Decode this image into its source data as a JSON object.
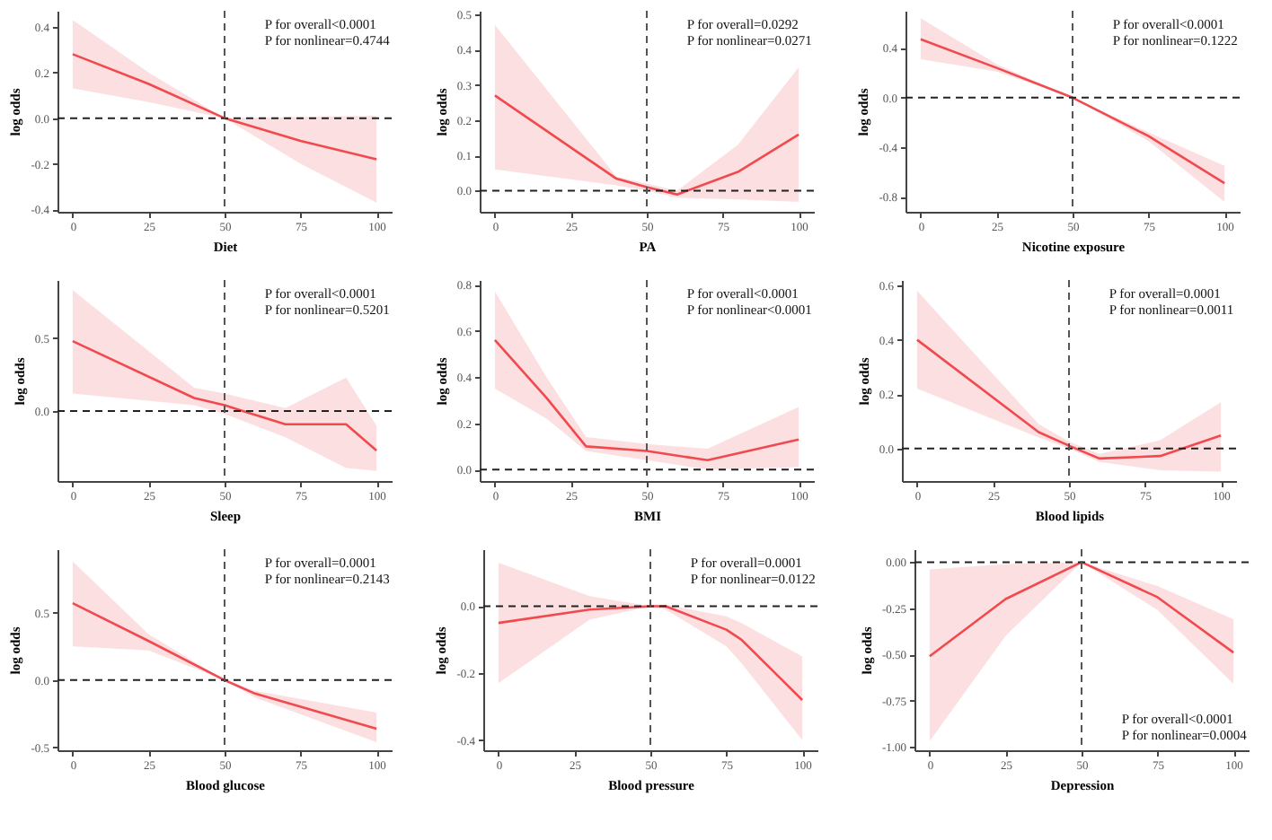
{
  "chart_data": [
    {
      "type": "line",
      "xlabel": "Diet",
      "ylabel": "log odds",
      "x": [
        0,
        25,
        50,
        75,
        100
      ],
      "xlim": [
        -5,
        105
      ],
      "xticks": [
        0,
        25,
        50,
        75,
        100
      ],
      "ylim": [
        -0.41,
        0.47
      ],
      "yticks": [
        -0.4,
        -0.2,
        {
          "value": 0,
          "label": "0.0"
        },
        0.2,
        0.4
      ],
      "series": [
        {
          "color": "#f04a4f",
          "values": [
            0.28,
            0.15,
            0,
            -0.1,
            -0.18
          ],
          "lower": [
            0.13,
            0.07,
            0,
            -0.2,
            -0.37
          ],
          "upper": [
            0.43,
            0.2,
            0,
            0.005,
            0.01
          ]
        }
      ],
      "ref_lines": [
        {
          "axis": "y",
          "value": 0,
          "color": "#222222",
          "line_style": "dashed"
        },
        {
          "axis": "x",
          "value": 50,
          "color": "#555555",
          "line_style": "dashed"
        }
      ],
      "annotations": [
        "P for overall<0.0001",
        "P for nonlinear=0.4744"
      ]
    },
    {
      "type": "line",
      "xlabel": "PA",
      "ylabel": "log odds",
      "x": [
        0,
        40,
        50,
        60,
        80,
        100
      ],
      "xlim": [
        -5,
        105
      ],
      "xticks": [
        0,
        25,
        50,
        75,
        100
      ],
      "ylim": [
        -0.06,
        0.51
      ],
      "yticks": [
        {
          "value": 0,
          "label": "0.0"
        },
        0.1,
        0.2,
        0.3,
        0.4,
        0.5
      ],
      "series": [
        {
          "color": "#f04a4f",
          "values": [
            0.27,
            0.034,
            0.01,
            -0.011,
            0.053,
            0.159
          ],
          "lower": [
            0.06,
            0.015,
            0,
            -0.02,
            -0.025,
            -0.032
          ],
          "upper": [
            0.47,
            0.04,
            0.02,
            0,
            0.13,
            0.35
          ]
        }
      ],
      "ref_lines": [
        {
          "axis": "y",
          "value": 0,
          "color": "#222222",
          "line_style": "dashed"
        },
        {
          "axis": "x",
          "value": 50,
          "color": "#555555",
          "line_style": "dashed"
        }
      ],
      "annotations": [
        "P for overall=0.0292",
        "P for nonlinear=0.0271"
      ]
    },
    {
      "type": "line",
      "xlabel": "Nicotine exposure",
      "ylabel": "log odds",
      "x": [
        0,
        25,
        50,
        75,
        100
      ],
      "xlim": [
        -5,
        105
      ],
      "xticks": [
        0,
        25,
        50,
        75,
        100
      ],
      "ylim": [
        -0.92,
        0.7
      ],
      "yticks": [
        -0.8,
        -0.4,
        {
          "value": 0,
          "label": "0.0"
        },
        0.4
      ],
      "series": [
        {
          "color": "#f04a4f",
          "values": [
            0.47,
            0.24,
            0,
            -0.31,
            -0.69
          ],
          "lower": [
            0.31,
            0.21,
            0,
            -0.35,
            -0.84
          ],
          "upper": [
            0.64,
            0.27,
            0,
            -0.28,
            -0.55
          ]
        }
      ],
      "ref_lines": [
        {
          "axis": "y",
          "value": 0,
          "color": "#222222",
          "line_style": "dashed"
        },
        {
          "axis": "x",
          "value": 50,
          "color": "#555555",
          "line_style": "dashed"
        }
      ],
      "annotations": [
        "P for overall<0.0001",
        "P for nonlinear=0.1222"
      ]
    },
    {
      "type": "line",
      "xlabel": "Sleep",
      "ylabel": "log odds",
      "x": [
        0,
        40,
        50,
        70,
        90,
        100
      ],
      "xlim": [
        -5,
        105
      ],
      "xticks": [
        0,
        25,
        50,
        75,
        100
      ],
      "ylim": [
        -0.48,
        0.9
      ],
      "yticks": [
        {
          "value": 0,
          "label": "0.0"
        },
        0.5
      ],
      "series": [
        {
          "color": "#f04a4f",
          "values": [
            0.48,
            0.09,
            0.04,
            -0.09,
            -0.09,
            -0.27
          ],
          "lower": [
            0.12,
            0.04,
            -0.02,
            -0.18,
            -0.39,
            -0.41
          ],
          "upper": [
            0.83,
            0.16,
            0.12,
            0.02,
            0.23,
            -0.1
          ]
        }
      ],
      "ref_lines": [
        {
          "axis": "y",
          "value": 0,
          "color": "#222222",
          "line_style": "dashed"
        },
        {
          "axis": "x",
          "value": 50,
          "color": "#555555",
          "line_style": "dashed"
        }
      ],
      "annotations": [
        "P for overall<0.0001",
        "P for nonlinear=0.5201"
      ]
    },
    {
      "type": "line",
      "xlabel": "BMI",
      "ylabel": "log odds",
      "x": [
        0,
        17,
        30,
        50,
        70,
        100
      ],
      "xlim": [
        -5,
        105
      ],
      "xticks": [
        0,
        25,
        50,
        75,
        100
      ],
      "ylim": [
        -0.05,
        0.82
      ],
      "yticks": [
        {
          "value": 0,
          "label": "0.0"
        },
        0.2,
        0.4,
        0.6,
        0.8
      ],
      "series": [
        {
          "color": "#f04a4f",
          "values": [
            0.56,
            0.31,
            0.1,
            0.08,
            0.04,
            0.13
          ],
          "lower": [
            0.35,
            0.22,
            0.08,
            0.04,
            0,
            0.01
          ],
          "upper": [
            0.77,
            0.4,
            0.14,
            0.11,
            0.09,
            0.27
          ]
        }
      ],
      "ref_lines": [
        {
          "axis": "y",
          "value": 0,
          "color": "#222222",
          "line_style": "dashed"
        },
        {
          "axis": "x",
          "value": 50,
          "color": "#555555",
          "line_style": "dashed"
        }
      ],
      "annotations": [
        "P for overall<0.0001",
        "P for nonlinear<0.0001"
      ]
    },
    {
      "type": "line",
      "xlabel": "Blood lipids",
      "ylabel": "log odds",
      "x": [
        0,
        40,
        50,
        60,
        80,
        100
      ],
      "xlim": [
        -5,
        105
      ],
      "xticks": [
        0,
        25,
        50,
        75,
        100
      ],
      "ylim": [
        -0.12,
        0.62
      ],
      "yticks": [
        {
          "value": 0,
          "label": "0.0"
        },
        0.2,
        0.4,
        0.6
      ],
      "series": [
        {
          "color": "#f04a4f",
          "values": [
            0.4,
            0.06,
            0.01,
            -0.037,
            -0.028,
            0.048
          ],
          "lower": [
            0.22,
            0.04,
            0,
            -0.05,
            -0.08,
            -0.085
          ],
          "upper": [
            0.58,
            0.09,
            0.025,
            -0.02,
            0.03,
            0.17
          ]
        }
      ],
      "ref_lines": [
        {
          "axis": "y",
          "value": 0,
          "color": "#222222",
          "line_style": "dashed"
        },
        {
          "axis": "x",
          "value": 50,
          "color": "#555555",
          "line_style": "dashed"
        }
      ],
      "annotations": [
        "P for overall=0.0001",
        "P for nonlinear=0.0011"
      ]
    },
    {
      "type": "line",
      "xlabel": "Blood glucose",
      "ylabel": "log odds",
      "x": [
        0,
        25,
        50,
        60,
        100
      ],
      "xlim": [
        -5,
        105
      ],
      "xticks": [
        0,
        25,
        50,
        75,
        100
      ],
      "ylim": [
        -0.52,
        0.97
      ],
      "yticks": [
        -0.5,
        {
          "value": 0,
          "label": "0.0"
        },
        0.5
      ],
      "series": [
        {
          "color": "#f04a4f",
          "values": [
            0.57,
            0.29,
            0,
            -0.1,
            -0.36
          ],
          "lower": [
            0.25,
            0.22,
            0,
            -0.13,
            -0.46
          ],
          "upper": [
            0.88,
            0.34,
            0,
            -0.08,
            -0.24
          ]
        }
      ],
      "ref_lines": [
        {
          "axis": "y",
          "value": 0,
          "color": "#222222",
          "line_style": "dashed"
        },
        {
          "axis": "x",
          "value": 50,
          "color": "#555555",
          "line_style": "dashed"
        }
      ],
      "annotations": [
        "P for overall=0.0001",
        "P for nonlinear=0.2143"
      ]
    },
    {
      "type": "line",
      "xlabel": "Blood pressure",
      "ylabel": "log odds",
      "x": [
        0,
        30,
        50,
        55,
        75,
        80,
        100
      ],
      "xlim": [
        -5,
        105
      ],
      "xticks": [
        0,
        25,
        50,
        75,
        100
      ],
      "ylim": [
        -0.43,
        0.17
      ],
      "yticks": [
        -0.4,
        -0.2,
        {
          "value": 0,
          "label": "0.0"
        }
      ],
      "series": [
        {
          "color": "#f04a4f",
          "values": [
            -0.05,
            -0.01,
            0,
            0,
            -0.07,
            -0.1,
            -0.28
          ],
          "lower": [
            -0.23,
            -0.04,
            0,
            -0.01,
            -0.12,
            -0.17,
            -0.4
          ],
          "upper": [
            0.13,
            0.03,
            0,
            0.005,
            -0.03,
            -0.05,
            -0.15
          ]
        }
      ],
      "ref_lines": [
        {
          "axis": "y",
          "value": 0,
          "color": "#222222",
          "line_style": "dashed"
        },
        {
          "axis": "x",
          "value": 50,
          "color": "#555555",
          "line_style": "dashed"
        }
      ],
      "annotations": [
        "P for overall=0.0001",
        "P for nonlinear=0.0122"
      ]
    },
    {
      "type": "line",
      "xlabel": "Depression",
      "ylabel": "log odds",
      "x": [
        0,
        25,
        50,
        75,
        100
      ],
      "xlim": [
        -5,
        105
      ],
      "xticks": [
        0,
        25,
        50,
        75,
        100
      ],
      "ylim": [
        -1.02,
        0.07
      ],
      "yticks": [
        {
          "value": -1,
          "label": "-1.00"
        },
        -0.75,
        {
          "value": -0.5,
          "label": "-0.50"
        },
        -0.25,
        {
          "value": 0,
          "label": "0.00"
        }
      ],
      "series": [
        {
          "color": "#f04a4f",
          "values": [
            -0.51,
            -0.2,
            0,
            -0.19,
            -0.49
          ],
          "lower": [
            -0.97,
            -0.4,
            0,
            -0.26,
            -0.66
          ],
          "upper": [
            -0.04,
            -0.01,
            0,
            -0.13,
            -0.31
          ]
        }
      ],
      "ref_lines": [
        {
          "axis": "y",
          "value": 0,
          "color": "#222222",
          "line_style": "dashed"
        },
        {
          "axis": "x",
          "value": 50,
          "color": "#555555",
          "line_style": "dashed"
        }
      ],
      "annotations": [
        "P for overall<0.0001",
        "P for nonlinear=0.0004"
      ]
    }
  ]
}
